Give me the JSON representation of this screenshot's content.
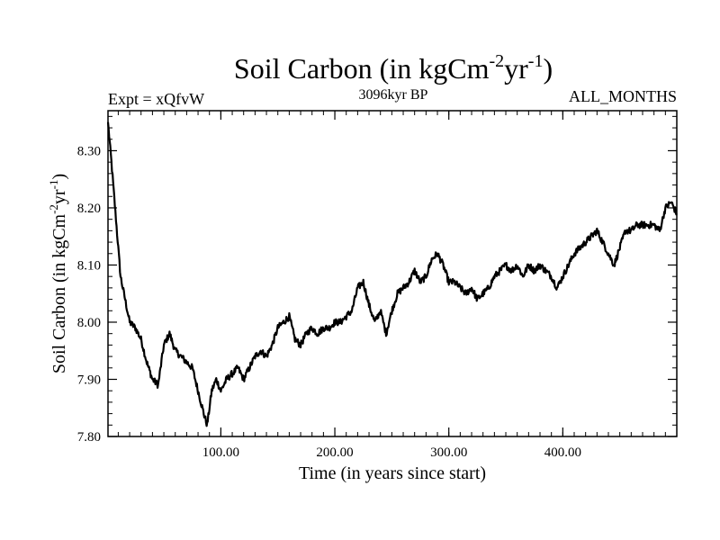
{
  "chart_data": {
    "type": "line",
    "title": {
      "text": "Soil Carbon (in kgCm",
      "sup1": "-2",
      "mid": "yr",
      "sup2": "-1",
      "end": ")"
    },
    "header_left": "Expt = xQfvW",
    "header_center": "3096kyr BP",
    "header_right": "ALL_MONTHS",
    "xlabel": "Time (in years since start)",
    "ylabel": {
      "text": "Soil Carbon (in kgCm",
      "sup1": "-2",
      "mid": "yr",
      "sup2": "-1",
      "end": ")"
    },
    "xlim": [
      1,
      500
    ],
    "ylim": [
      7.8,
      8.37
    ],
    "xticks": [
      {
        "value": 100,
        "label": "100.00"
      },
      {
        "value": 200,
        "label": "200.00"
      },
      {
        "value": 300,
        "label": "300.00"
      },
      {
        "value": 400,
        "label": "400.00"
      }
    ],
    "yticks": [
      {
        "value": 7.8,
        "label": "7.80"
      },
      {
        "value": 7.9,
        "label": "7.90"
      },
      {
        "value": 8.0,
        "label": "8.00"
      },
      {
        "value": 8.1,
        "label": "8.10"
      },
      {
        "value": 8.2,
        "label": "8.20"
      },
      {
        "value": 8.3,
        "label": "8.30"
      }
    ],
    "series": [
      {
        "name": "Soil Carbon",
        "color": "#000000",
        "x": [
          1,
          4,
          8,
          12,
          16,
          20,
          25,
          30,
          35,
          40,
          45,
          50,
          55,
          60,
          65,
          70,
          75,
          80,
          85,
          88,
          92,
          96,
          100,
          105,
          110,
          115,
          120,
          125,
          130,
          135,
          140,
          145,
          150,
          155,
          160,
          165,
          170,
          175,
          180,
          185,
          190,
          195,
          200,
          205,
          210,
          215,
          220,
          225,
          230,
          235,
          240,
          245,
          250,
          255,
          260,
          265,
          270,
          275,
          280,
          285,
          290,
          295,
          300,
          305,
          310,
          315,
          320,
          325,
          330,
          335,
          340,
          345,
          350,
          355,
          360,
          365,
          370,
          375,
          380,
          385,
          390,
          395,
          400,
          405,
          410,
          415,
          420,
          425,
          430,
          435,
          440,
          445,
          450,
          455,
          460,
          465,
          470,
          475,
          480,
          485,
          490,
          495,
          500
        ],
        "values": [
          8.35,
          8.28,
          8.18,
          8.08,
          8.04,
          8.0,
          7.99,
          7.97,
          7.93,
          7.9,
          7.89,
          7.96,
          7.98,
          7.95,
          7.94,
          7.93,
          7.92,
          7.88,
          7.84,
          7.82,
          7.88,
          7.9,
          7.88,
          7.9,
          7.91,
          7.92,
          7.9,
          7.92,
          7.94,
          7.95,
          7.94,
          7.96,
          7.99,
          8.0,
          8.01,
          7.97,
          7.96,
          7.98,
          7.99,
          7.98,
          7.99,
          7.99,
          8.0,
          8.0,
          8.01,
          8.02,
          8.06,
          8.07,
          8.03,
          8.0,
          8.02,
          7.98,
          8.02,
          8.05,
          8.06,
          8.07,
          8.09,
          8.07,
          8.08,
          8.11,
          8.12,
          8.1,
          8.07,
          8.07,
          8.06,
          8.05,
          8.06,
          8.04,
          8.05,
          8.06,
          8.08,
          8.09,
          8.1,
          8.09,
          8.1,
          8.08,
          8.1,
          8.09,
          8.1,
          8.09,
          8.08,
          8.06,
          8.08,
          8.1,
          8.12,
          8.13,
          8.14,
          8.15,
          8.16,
          8.14,
          8.12,
          8.1,
          8.13,
          8.16,
          8.16,
          8.17,
          8.17,
          8.17,
          8.17,
          8.16,
          8.2,
          8.21,
          8.19
        ]
      }
    ]
  }
}
